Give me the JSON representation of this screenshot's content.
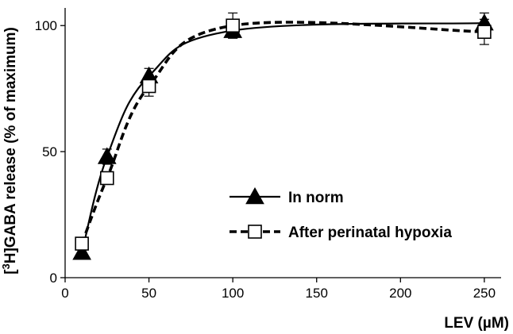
{
  "chart_data": {
    "type": "line",
    "xlabel": "LEV  (µM)",
    "ylabel_prefix": "[",
    "ylabel_sup": "3",
    "ylabel_suffix": "H]GABA release (% of maximum)",
    "xlim": [
      0,
      260
    ],
    "ylim": [
      0,
      107
    ],
    "xticks": [
      0,
      50,
      100,
      150,
      200,
      250
    ],
    "yticks": [
      0,
      50,
      100
    ],
    "grid": false,
    "legend_position": "center-right",
    "series": [
      {
        "name": "In norm",
        "marker": "filled-triangle",
        "line_style": "solid",
        "x": [
          10,
          25,
          50,
          100,
          250
        ],
        "y": [
          10,
          48,
          80,
          98,
          101
        ],
        "error": [
          0,
          3,
          3,
          3,
          4
        ]
      },
      {
        "name": "After perinatal hypoxia",
        "marker": "open-square",
        "line_style": "dashed",
        "x": [
          10,
          25,
          50,
          100,
          250
        ],
        "y": [
          13.5,
          39.5,
          76,
          100,
          97.5
        ],
        "error": [
          0,
          2,
          4,
          5,
          5
        ]
      }
    ],
    "colors": {
      "line": "#000000",
      "marker_fill_open": "#ffffff",
      "marker_fill_solid": "#000000"
    }
  }
}
